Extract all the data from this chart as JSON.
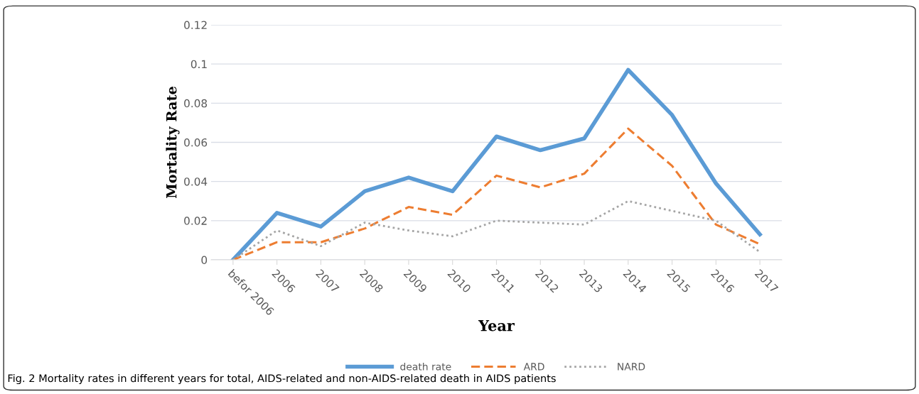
{
  "chart_data": {
    "type": "line",
    "xlabel": "Year",
    "ylabel": "Mortality Rate",
    "categories": [
      "befor 2006",
      "2006",
      "2007",
      "2008",
      "2009",
      "2010",
      "2011",
      "2012",
      "2013",
      "2014",
      "2015",
      "2016",
      "2017"
    ],
    "series": [
      {
        "name": "death rate",
        "color": "#5b9bd5",
        "line_style": "solid",
        "values": [
          0,
          0.024,
          0.017,
          0.035,
          0.042,
          0.035,
          0.063,
          0.056,
          0.062,
          0.097,
          0.074,
          0.039,
          0.013
        ]
      },
      {
        "name": "ARD",
        "color": "#ed7d31",
        "line_style": "dashed",
        "values": [
          0,
          0.009,
          0.009,
          0.016,
          0.027,
          0.023,
          0.043,
          0.037,
          0.044,
          0.067,
          0.048,
          0.018,
          0.008
        ]
      },
      {
        "name": "NARD",
        "color": "#a5a5a5",
        "line_style": "dotted",
        "values": [
          0,
          0.015,
          0.007,
          0.019,
          0.015,
          0.012,
          0.02,
          0.019,
          0.018,
          0.03,
          0.025,
          0.02,
          0.004
        ]
      }
    ],
    "ylim": [
      0,
      0.12
    ],
    "yticks": [
      0,
      0.02,
      0.04,
      0.06,
      0.08,
      0.1,
      0.12
    ],
    "grid": "y",
    "legend": "bottom",
    "marker": "none",
    "annotations": [
      "Fig. 2 Mortality rates in different years for total, AIDS-related and non-AIDS-related death in AIDS patients"
    ]
  }
}
